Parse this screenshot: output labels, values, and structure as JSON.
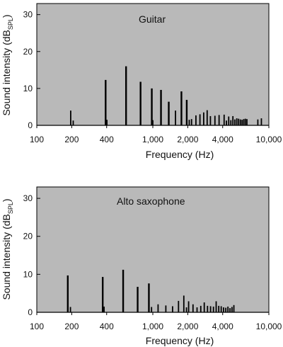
{
  "chart_data": [
    {
      "type": "bar",
      "title": "Guitar",
      "xlabel": "Frequency (Hz)",
      "ylabel": "Sound intensity (dB",
      "ylabel_sub": "SPL",
      "ylabel_end": ")",
      "x_scale": "log",
      "xlim": [
        100,
        10000
      ],
      "ylim": [
        0,
        33
      ],
      "x_ticks": [
        100,
        200,
        400,
        1000,
        2000,
        4000,
        10000
      ],
      "x_tick_labels": [
        "100",
        "200",
        "400",
        "1,000",
        "2,000",
        "4,000",
        "10,000"
      ],
      "y_ticks": [
        0,
        10,
        20,
        30
      ],
      "y_tick_labels": [
        "0",
        "10",
        "20",
        "30"
      ],
      "grid": false,
      "background": "#b9b9b9",
      "bar_color": "#000000",
      "points": [
        {
          "x": 196,
          "y": 4
        },
        {
          "x": 206,
          "y": 1.3
        },
        {
          "x": 392,
          "y": 12.3
        },
        {
          "x": 402,
          "y": 1.5
        },
        {
          "x": 588,
          "y": 16
        },
        {
          "x": 784,
          "y": 11.8
        },
        {
          "x": 980,
          "y": 10
        },
        {
          "x": 1000,
          "y": 1.4
        },
        {
          "x": 1176,
          "y": 9.6
        },
        {
          "x": 1372,
          "y": 6.4
        },
        {
          "x": 1568,
          "y": 4
        },
        {
          "x": 1764,
          "y": 9.2
        },
        {
          "x": 1960,
          "y": 6.9
        },
        {
          "x": 2060,
          "y": 1.5
        },
        {
          "x": 2156,
          "y": 1.7
        },
        {
          "x": 2352,
          "y": 2.7
        },
        {
          "x": 2548,
          "y": 3
        },
        {
          "x": 2744,
          "y": 3.5
        },
        {
          "x": 2940,
          "y": 4.1
        },
        {
          "x": 3136,
          "y": 2.5
        },
        {
          "x": 3430,
          "y": 2.6
        },
        {
          "x": 3724,
          "y": 2.8
        },
        {
          "x": 4116,
          "y": 2.9
        },
        {
          "x": 4310,
          "y": 1.3
        },
        {
          "x": 4508,
          "y": 2.4
        },
        {
          "x": 4704,
          "y": 1.4
        },
        {
          "x": 4900,
          "y": 2.5
        },
        {
          "x": 5096,
          "y": 1.6
        },
        {
          "x": 5292,
          "y": 1.9
        },
        {
          "x": 5488,
          "y": 1.8
        },
        {
          "x": 5684,
          "y": 1.6
        },
        {
          "x": 5880,
          "y": 1.5
        },
        {
          "x": 6076,
          "y": 1.7
        },
        {
          "x": 6272,
          "y": 1.8
        },
        {
          "x": 6468,
          "y": 1.7
        },
        {
          "x": 8036,
          "y": 1.6
        },
        {
          "x": 8624,
          "y": 1.9
        }
      ]
    },
    {
      "type": "bar",
      "title": "Alto saxophone",
      "xlabel": "Frequency (Hz)",
      "ylabel": "Sound intensity (dB",
      "ylabel_sub": "SPL",
      "ylabel_end": ")",
      "x_scale": "log",
      "xlim": [
        100,
        10000
      ],
      "ylim": [
        0,
        33
      ],
      "x_ticks": [
        100,
        200,
        400,
        1000,
        2000,
        4000,
        10000
      ],
      "x_tick_labels": [
        "100",
        "200",
        "400",
        "1,000",
        "2,000",
        "4,000",
        "10,000"
      ],
      "y_ticks": [
        0,
        10,
        20,
        30
      ],
      "y_tick_labels": [
        "0",
        "10",
        "20",
        "30"
      ],
      "grid": false,
      "background": "#b9b9b9",
      "bar_color": "#000000",
      "points": [
        {
          "x": 185,
          "y": 9.7
        },
        {
          "x": 195,
          "y": 1.4
        },
        {
          "x": 370,
          "y": 9.3
        },
        {
          "x": 380,
          "y": 1.5
        },
        {
          "x": 555,
          "y": 11.2
        },
        {
          "x": 740,
          "y": 6.7
        },
        {
          "x": 925,
          "y": 7.6
        },
        {
          "x": 975,
          "y": 1.4
        },
        {
          "x": 1110,
          "y": 2.1
        },
        {
          "x": 1295,
          "y": 1.8
        },
        {
          "x": 1480,
          "y": 1.6
        },
        {
          "x": 1665,
          "y": 3
        },
        {
          "x": 1850,
          "y": 4.4
        },
        {
          "x": 1950,
          "y": 1.3
        },
        {
          "x": 2035,
          "y": 2.9
        },
        {
          "x": 2220,
          "y": 2.1
        },
        {
          "x": 2405,
          "y": 1.3
        },
        {
          "x": 2590,
          "y": 1.7
        },
        {
          "x": 2775,
          "y": 2.6
        },
        {
          "x": 2960,
          "y": 1.7
        },
        {
          "x": 3145,
          "y": 1.6
        },
        {
          "x": 3330,
          "y": 1.5
        },
        {
          "x": 3515,
          "y": 2.9
        },
        {
          "x": 3700,
          "y": 1.7
        },
        {
          "x": 3885,
          "y": 1.6
        },
        {
          "x": 4070,
          "y": 1.3
        },
        {
          "x": 4255,
          "y": 1.2
        },
        {
          "x": 4440,
          "y": 1.5
        },
        {
          "x": 4625,
          "y": 1.1
        },
        {
          "x": 4810,
          "y": 1.4
        },
        {
          "x": 4995,
          "y": 1.9
        }
      ]
    }
  ]
}
